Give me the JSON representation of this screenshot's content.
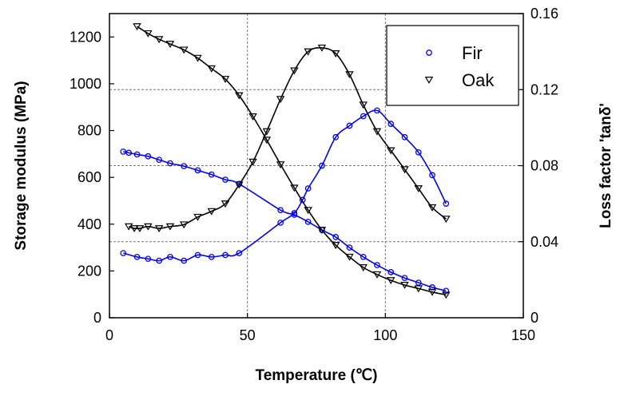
{
  "chart_data": {
    "type": "scatter",
    "xlabel": "Temperature (℃)",
    "ylabel": "Storage modulus (MPa)",
    "y2label": "Loss factor 'tanδ'",
    "xlim": [
      0,
      150
    ],
    "ylim": [
      0,
      1300
    ],
    "y2lim": [
      0,
      0.16
    ],
    "xticks": [
      "0",
      "50",
      "100",
      "150"
    ],
    "yticks": [
      "0",
      "200",
      "400",
      "600",
      "800",
      "1000",
      "1200"
    ],
    "y2ticks": [
      "0",
      "0.04",
      "0.08",
      "0.12",
      "0.16"
    ],
    "grid": true,
    "legend_position": "top-right",
    "series": [
      {
        "name": "Fir",
        "color": "#0000ff",
        "marker": "circle",
        "storage_modulus": {
          "x": [
            5,
            7,
            10,
            14,
            18,
            22,
            27,
            32,
            37,
            42,
            47,
            62,
            67,
            72,
            77,
            82,
            87,
            92,
            97,
            102,
            107,
            112,
            117,
            122
          ],
          "y": [
            710,
            705,
            698,
            690,
            675,
            660,
            648,
            630,
            612,
            590,
            572,
            460,
            440,
            410,
            375,
            345,
            300,
            260,
            225,
            195,
            170,
            150,
            130,
            115
          ]
        },
        "loss_factor": {
          "x": [
            5,
            10,
            14,
            18,
            22,
            27,
            32,
            37,
            42,
            47,
            62,
            67,
            70,
            72,
            77,
            82,
            87,
            92,
            97,
            102,
            107,
            112,
            117,
            122
          ],
          "y": [
            0.034,
            0.032,
            0.031,
            0.03,
            0.032,
            0.03,
            0.033,
            0.032,
            0.033,
            0.034,
            0.05,
            0.055,
            0.062,
            0.068,
            0.08,
            0.095,
            0.101,
            0.106,
            0.109,
            0.102,
            0.095,
            0.087,
            0.075,
            0.06
          ]
        }
      },
      {
        "name": "Oak",
        "color": "#000000",
        "marker": "triangle-down",
        "storage_modulus": {
          "x": [
            10,
            14,
            18,
            22,
            27,
            32,
            37,
            42,
            47,
            52,
            57,
            62,
            67,
            72,
            77,
            82,
            87,
            92,
            97,
            102,
            107,
            112,
            117,
            122
          ],
          "y": [
            1245,
            1215,
            1190,
            1170,
            1145,
            1110,
            1065,
            1020,
            950,
            860,
            760,
            655,
            555,
            460,
            375,
            310,
            260,
            215,
            185,
            160,
            140,
            125,
            110,
            98
          ]
        },
        "loss_factor": {
          "x": [
            7,
            9,
            11,
            14,
            18,
            22,
            27,
            32,
            37,
            42,
            47,
            52,
            57,
            62,
            67,
            72,
            77,
            82,
            87,
            92,
            97,
            102,
            107,
            112,
            117,
            122
          ],
          "y": [
            0.048,
            0.047,
            0.047,
            0.048,
            0.047,
            0.048,
            0.049,
            0.053,
            0.056,
            0.06,
            0.07,
            0.082,
            0.098,
            0.115,
            0.13,
            0.14,
            0.142,
            0.139,
            0.128,
            0.112,
            0.098,
            0.088,
            0.078,
            0.068,
            0.058,
            0.052
          ]
        }
      }
    ]
  }
}
